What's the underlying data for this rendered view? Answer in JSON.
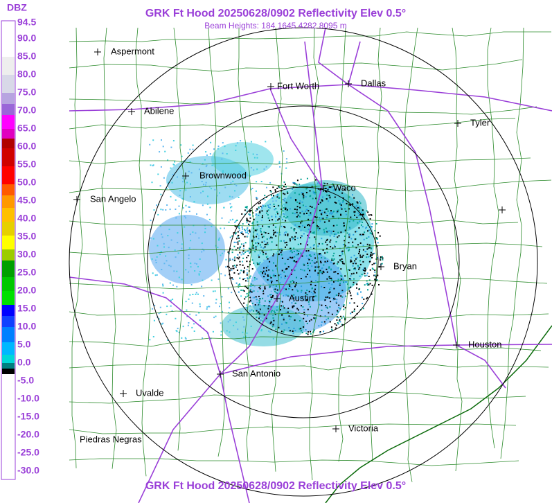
{
  "header": {
    "title": "GRK Ft Hood 20250628/0902 Reflectivity Elev 0.5°",
    "subtitle": "Beam Heights: 184 1645 4282 8095 m"
  },
  "footer": {
    "title": "GRK Ft Hood 20250628/0902 Reflectivity Elev 0.5°"
  },
  "colorbar": {
    "title": "DBZ",
    "labels": [
      "94.5",
      "90.0",
      "85.0",
      "80.0",
      "75.0",
      "70.0",
      "65.0",
      "60.0",
      "55.0",
      "50.0",
      "45.0",
      "40.0",
      "35.0",
      "30.0",
      "25.0",
      "20.0",
      "15.0",
      "10.0",
      "5.0",
      "0.0",
      "-5.0",
      "-10.0",
      "-15.0",
      "-20.0",
      "-25.0",
      "-30.0"
    ]
  },
  "cities": [
    "Aspermont",
    "Abilene",
    "Fort Worth",
    "Dallas",
    "Tyler",
    "Brownwood",
    "Waco",
    "San Angelo",
    "Bryan",
    "Austin",
    "Houston",
    "San Antonio",
    "Uvalde",
    "Victoria",
    "Piedras Negras"
  ]
}
